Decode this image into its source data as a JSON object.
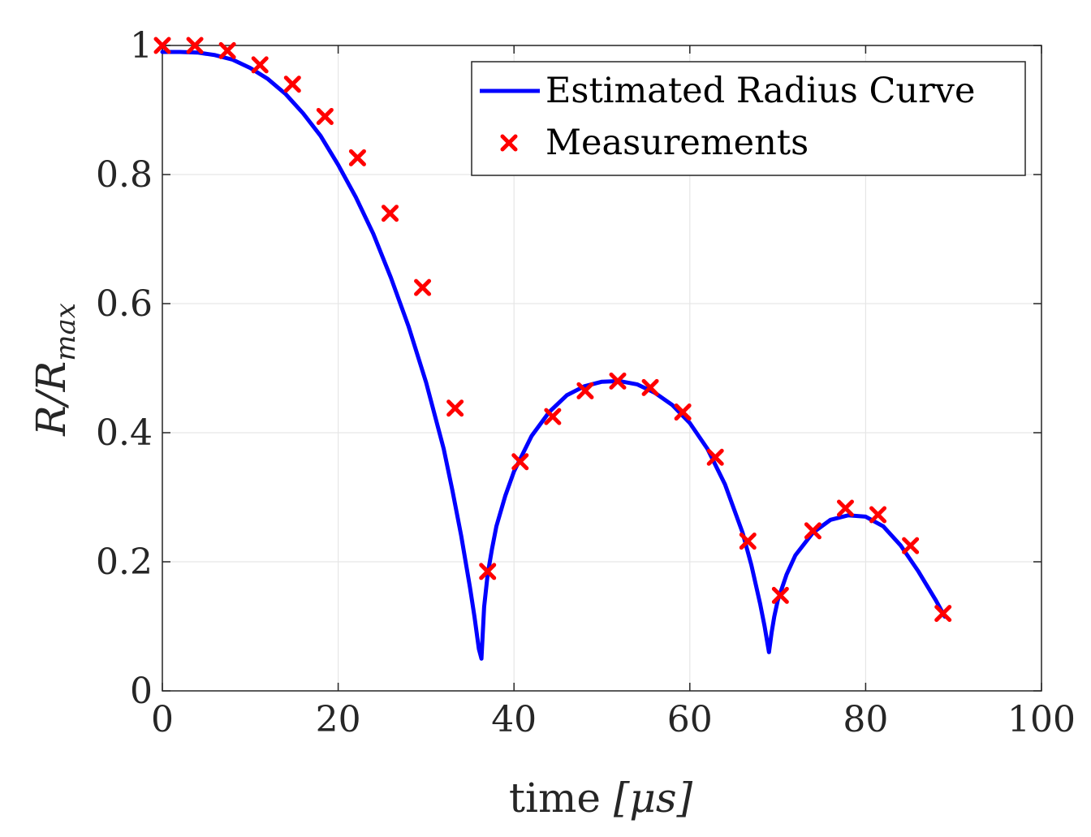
{
  "chart_data": {
    "type": "line",
    "xlabel_main": "time ",
    "xlabel_unit": "[μs]",
    "ylabel_main": "R/R",
    "ylabel_sub": "max",
    "xlim": [
      0,
      100
    ],
    "ylim": [
      0,
      1
    ],
    "xticks": [
      0,
      20,
      40,
      60,
      80,
      100
    ],
    "xtick_labels": [
      "0",
      "20",
      "40",
      "60",
      "80",
      "100"
    ],
    "yticks": [
      0,
      0.2,
      0.4,
      0.6,
      0.8,
      1
    ],
    "ytick_labels": [
      "0",
      "0.2",
      "0.4",
      "0.6",
      "0.8",
      "1"
    ],
    "grid": true,
    "legend_position": "top-right",
    "colors": {
      "curve": "#0000ff",
      "markers": "#ff0000",
      "grid": "#e6e6e6",
      "axes": "#262626"
    },
    "series": [
      {
        "name": "Estimated Radius Curve",
        "style": "line",
        "x": [
          0,
          2,
          4,
          6,
          8,
          10,
          12,
          14,
          16,
          18,
          20,
          22,
          24,
          26,
          28,
          30,
          32,
          33,
          34,
          35,
          35.5,
          36,
          36.3,
          36.6,
          37,
          37.5,
          38,
          39,
          40,
          42,
          44,
          46,
          48,
          50,
          52,
          54,
          56,
          58,
          60,
          62,
          64,
          66,
          67,
          68,
          68.5,
          69,
          69.3,
          69.6,
          70,
          71,
          72,
          74,
          76,
          78,
          80,
          82,
          84,
          86,
          88,
          89
        ],
        "y": [
          0.99,
          0.99,
          0.989,
          0.985,
          0.978,
          0.965,
          0.948,
          0.925,
          0.895,
          0.86,
          0.815,
          0.765,
          0.708,
          0.64,
          0.565,
          0.478,
          0.375,
          0.31,
          0.24,
          0.16,
          0.115,
          0.065,
          0.05,
          0.13,
          0.18,
          0.22,
          0.255,
          0.302,
          0.34,
          0.395,
          0.432,
          0.458,
          0.472,
          0.479,
          0.48,
          0.475,
          0.462,
          0.443,
          0.415,
          0.375,
          0.32,
          0.245,
          0.195,
          0.135,
          0.1,
          0.06,
          0.09,
          0.115,
          0.14,
          0.18,
          0.21,
          0.245,
          0.265,
          0.272,
          0.27,
          0.255,
          0.225,
          0.185,
          0.14,
          0.115
        ]
      },
      {
        "name": "Measurements",
        "style": "markers",
        "marker": "x",
        "x": [
          0,
          3.7,
          7.4,
          11.1,
          14.8,
          18.5,
          22.2,
          25.9,
          29.6,
          33.3,
          37.0,
          40.7,
          44.4,
          48.1,
          51.8,
          55.5,
          59.2,
          62.9,
          66.6,
          70.3,
          74.0,
          77.7,
          81.4,
          85.1,
          88.8
        ],
        "y": [
          1.0,
          1.0,
          0.992,
          0.97,
          0.94,
          0.89,
          0.826,
          0.74,
          0.625,
          0.438,
          0.185,
          0.355,
          0.425,
          0.465,
          0.48,
          0.47,
          0.432,
          0.362,
          0.232,
          0.148,
          0.248,
          0.283,
          0.273,
          0.225,
          0.12
        ]
      }
    ]
  }
}
